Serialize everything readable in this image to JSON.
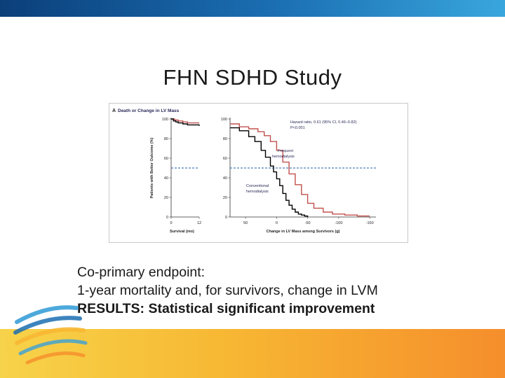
{
  "slide": {
    "title": "FHN SDHD Study",
    "text_lines": [
      "Co-primary endpoint:",
      "1-year mortality and, for survivors, change in LVM",
      "RESULTS: Statistical significant improvement"
    ]
  },
  "colors": {
    "top_bar": "#1b6fb3",
    "bottom_bar": "#f7b733",
    "frequent": "#c0504d",
    "conventional": "#000000",
    "reference_line": "#1f5fa8"
  },
  "chart_data": {
    "type": "line",
    "panel_label": "A",
    "panel_title": "Death or Change in LV Mass",
    "ylabel": "Patients with Better Outcome (%)",
    "ylim": [
      0,
      100
    ],
    "yticks": [
      0,
      20,
      40,
      60,
      80,
      100
    ],
    "reference_line_y": 50,
    "annotation": [
      "Hazard ratio, 0.61 (95% CI, 0.46–0.82)",
      "P<0.001"
    ],
    "left_panel": {
      "xlabel": "Survival (mo)",
      "xticks": [
        "0",
        "12"
      ],
      "xlim": [
        0,
        12
      ],
      "series": [
        {
          "label": "Frequent hemodialysis",
          "x": [
            0,
            1.5,
            3,
            5,
            7,
            9,
            12
          ],
          "y": [
            100,
            99,
            98,
            97,
            96,
            96,
            96
          ]
        },
        {
          "label": "Conventional hemodialysis",
          "x": [
            0,
            1,
            2,
            3,
            5,
            7,
            9,
            12
          ],
          "y": [
            100,
            98,
            97,
            96,
            95,
            94,
            94,
            93
          ]
        }
      ]
    },
    "right_panel": {
      "xlabel": "Change in LV Mass among Survivors (g)",
      "xticks": [
        "50",
        "0",
        "-50",
        "-100",
        "-150"
      ],
      "xlim": [
        75,
        -160
      ],
      "series": [
        {
          "name": "Frequent hemodialysis",
          "x": [
            75,
            60,
            45,
            30,
            20,
            10,
            0,
            -10,
            -20,
            -30,
            -40,
            -50,
            -60,
            -75,
            -90,
            -110,
            -130,
            -150
          ],
          "y": [
            95,
            92,
            90,
            87,
            83,
            77,
            68,
            56,
            44,
            33,
            23,
            14,
            9,
            5,
            3,
            2,
            1,
            1
          ]
        },
        {
          "name": "Conventional hemodialysis",
          "x": [
            75,
            60,
            45,
            35,
            25,
            18,
            10,
            5,
            0,
            -5,
            -10,
            -15,
            -20,
            -25,
            -30,
            -35,
            -40,
            -45,
            -50
          ],
          "y": [
            91,
            88,
            82,
            77,
            68,
            61,
            52,
            46,
            39,
            32,
            24,
            17,
            12,
            8,
            5,
            3,
            2,
            1,
            0
          ]
        }
      ],
      "curve_labels": [
        {
          "series": "Frequent hemodialysis",
          "lines": [
            "Frequent",
            "hemodialysis"
          ]
        },
        {
          "series": "Conventional hemodialysis",
          "lines": [
            "Conventional",
            "hemodialysis"
          ]
        }
      ]
    }
  }
}
